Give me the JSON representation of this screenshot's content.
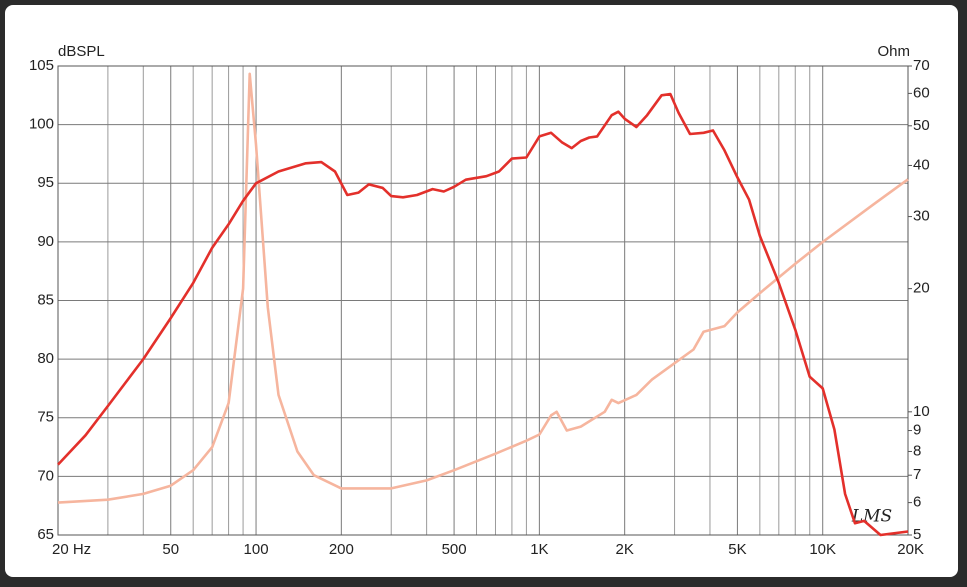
{
  "chart_data": {
    "type": "line",
    "y_label": "dBSPL",
    "y2_label": "Ohm",
    "watermark": "LMS",
    "xscale": "log",
    "xlim": [
      20,
      20000
    ],
    "xticks": [
      {
        "value": 20,
        "label": "20 Hz"
      },
      50,
      100,
      200,
      500,
      {
        "value": 1000,
        "label": "1K"
      },
      {
        "value": 2000,
        "label": "2K"
      },
      {
        "value": 5000,
        "label": "5K"
      },
      {
        "value": 10000,
        "label": "10K"
      },
      {
        "value": 20000,
        "label": "20K"
      }
    ],
    "x_minor_grid": [
      30,
      40,
      60,
      70,
      80,
      90,
      300,
      400,
      600,
      700,
      800,
      900,
      3000,
      4000,
      6000,
      7000,
      8000,
      9000
    ],
    "ylim": [
      65,
      105
    ],
    "yticks": [
      65,
      70,
      75,
      80,
      85,
      90,
      95,
      100,
      105
    ],
    "y2scale": "log",
    "y2lim": [
      5,
      70
    ],
    "y2ticks": [
      5,
      6,
      7,
      8,
      9,
      10,
      20,
      30,
      40,
      50,
      60,
      70
    ],
    "grid": true,
    "series": [
      {
        "color": "#e3302b",
        "x": [
          20,
          25,
          30,
          40,
          50,
          60,
          70,
          80,
          90,
          100,
          120,
          150,
          170,
          190,
          210,
          230,
          250,
          280,
          300,
          330,
          370,
          420,
          460,
          500,
          550,
          650,
          720,
          800,
          900,
          1000,
          1100,
          1200,
          1300,
          1400,
          1500,
          1600,
          1800,
          1900,
          2000,
          2200,
          2400,
          2700,
          2900,
          3100,
          3400,
          3800,
          4100,
          4500,
          5000,
          5500,
          6000,
          7000,
          8000,
          9000,
          10000,
          11000,
          12000,
          13000,
          14000,
          16000,
          20000
        ],
        "values": [
          71,
          73.5,
          76,
          80,
          83.5,
          86.5,
          89.5,
          91.5,
          93.5,
          95,
          96,
          96.7,
          96.8,
          96,
          94,
          94.2,
          94.9,
          94.6,
          93.9,
          93.8,
          94,
          94.5,
          94.3,
          94.7,
          95.3,
          95.6,
          96,
          97.1,
          97.2,
          99,
          99.3,
          98.5,
          98,
          98.6,
          98.9,
          99,
          100.8,
          101.1,
          100.5,
          99.8,
          100.8,
          102.5,
          102.6,
          101,
          99.2,
          99.3,
          99.5,
          97.8,
          95.5,
          93.6,
          90.5,
          86.5,
          82.5,
          78.5,
          77.5,
          74,
          68.5,
          66,
          66.2,
          65,
          65.3
        ]
      },
      {
        "color": "#f6b59e",
        "axis": "y2",
        "x": [
          20,
          30,
          40,
          50,
          60,
          70,
          80,
          90,
          95,
          100,
          110,
          120,
          140,
          160,
          200,
          300,
          400,
          500,
          700,
          900,
          1000,
          1100,
          1150,
          1250,
          1400,
          1700,
          1800,
          1900,
          2200,
          2500,
          2800,
          3500,
          3800,
          4500,
          5000,
          6000,
          8000,
          10000,
          15000,
          20000
        ],
        "values": [
          6,
          6.1,
          6.3,
          6.6,
          7.2,
          8.2,
          10.5,
          20,
          67,
          45,
          18,
          11,
          8,
          7,
          6.5,
          6.5,
          6.8,
          7.2,
          7.9,
          8.5,
          8.8,
          9.8,
          10,
          9,
          9.2,
          10,
          10.7,
          10.5,
          11,
          12,
          12.7,
          14.2,
          15.7,
          16.2,
          17.5,
          19.5,
          23,
          26,
          32,
          37
        ]
      }
    ]
  }
}
